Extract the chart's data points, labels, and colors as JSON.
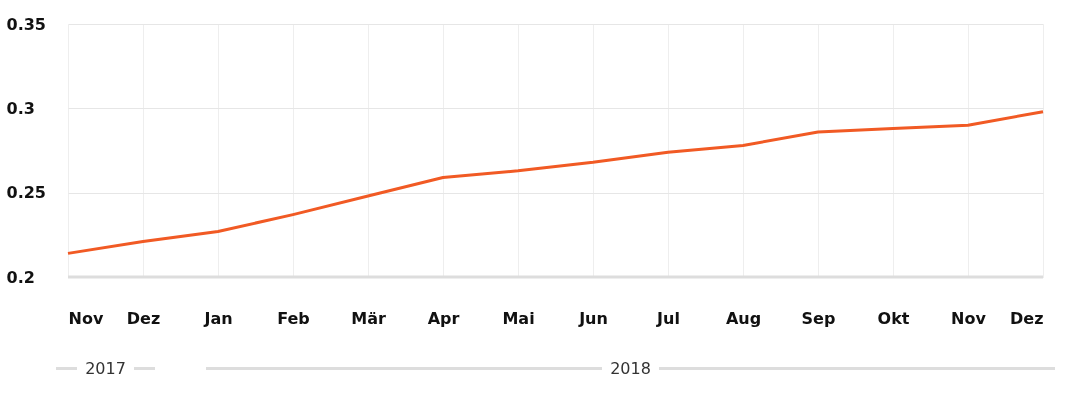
{
  "chart_data": {
    "type": "line",
    "categories": [
      "Nov",
      "Dez",
      "Jan",
      "Feb",
      "Mär",
      "Apr",
      "Mai",
      "Jun",
      "Jul",
      "Aug",
      "Sep",
      "Okt",
      "Nov",
      "Dez"
    ],
    "series": [
      {
        "color": "#f15a24",
        "values": [
          0.214,
          0.221,
          0.227,
          0.237,
          0.248,
          0.259,
          0.263,
          0.268,
          0.274,
          0.278,
          0.286,
          0.288,
          0.29,
          0.298
        ]
      }
    ],
    "ylim": [
      0.2,
      0.35
    ],
    "yticks": [
      0.2,
      0.25,
      0.3,
      0.35
    ],
    "grid": true,
    "legend": false,
    "marker": "none",
    "line_style": "solid",
    "annotations": [
      "2017",
      "2018"
    ]
  }
}
